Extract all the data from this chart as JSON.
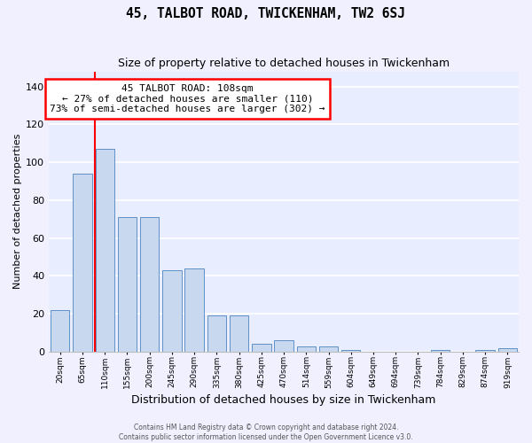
{
  "title": "45, TALBOT ROAD, TWICKENHAM, TW2 6SJ",
  "subtitle": "Size of property relative to detached houses in Twickenham",
  "xlabel": "Distribution of detached houses by size in Twickenham",
  "ylabel": "Number of detached properties",
  "bar_labels": [
    "20sqm",
    "65sqm",
    "110sqm",
    "155sqm",
    "200sqm",
    "245sqm",
    "290sqm",
    "335sqm",
    "380sqm",
    "425sqm",
    "470sqm",
    "514sqm",
    "559sqm",
    "604sqm",
    "649sqm",
    "694sqm",
    "739sqm",
    "784sqm",
    "829sqm",
    "874sqm",
    "919sqm"
  ],
  "bar_values": [
    22,
    94,
    107,
    71,
    71,
    43,
    44,
    19,
    19,
    4,
    6,
    3,
    3,
    1,
    0,
    0,
    0,
    1,
    0,
    1,
    2
  ],
  "bar_color": "#c8d8ee",
  "bar_edge_color": "#6090c8",
  "ylim": [
    0,
    148
  ],
  "yticks": [
    0,
    20,
    40,
    60,
    80,
    100,
    120,
    140
  ],
  "red_line_x": 1.57,
  "annotation_line1": "45 TALBOT ROAD: 108sqm",
  "annotation_line2": "← 27% of detached houses are smaller (110)",
  "annotation_line3": "73% of semi-detached houses are larger (302) →",
  "footer_line1": "Contains HM Land Registry data © Crown copyright and database right 2024.",
  "footer_line2": "Contains public sector information licensed under the Open Government Licence v3.0.",
  "plot_bg_color": "#e8eeff",
  "fig_bg_color": "#f0f0ff",
  "grid_color": "#ffffff",
  "title_fontsize": 10.5,
  "subtitle_fontsize": 9,
  "ylabel_fontsize": 8,
  "xlabel_fontsize": 9,
  "bar_width": 0.85
}
